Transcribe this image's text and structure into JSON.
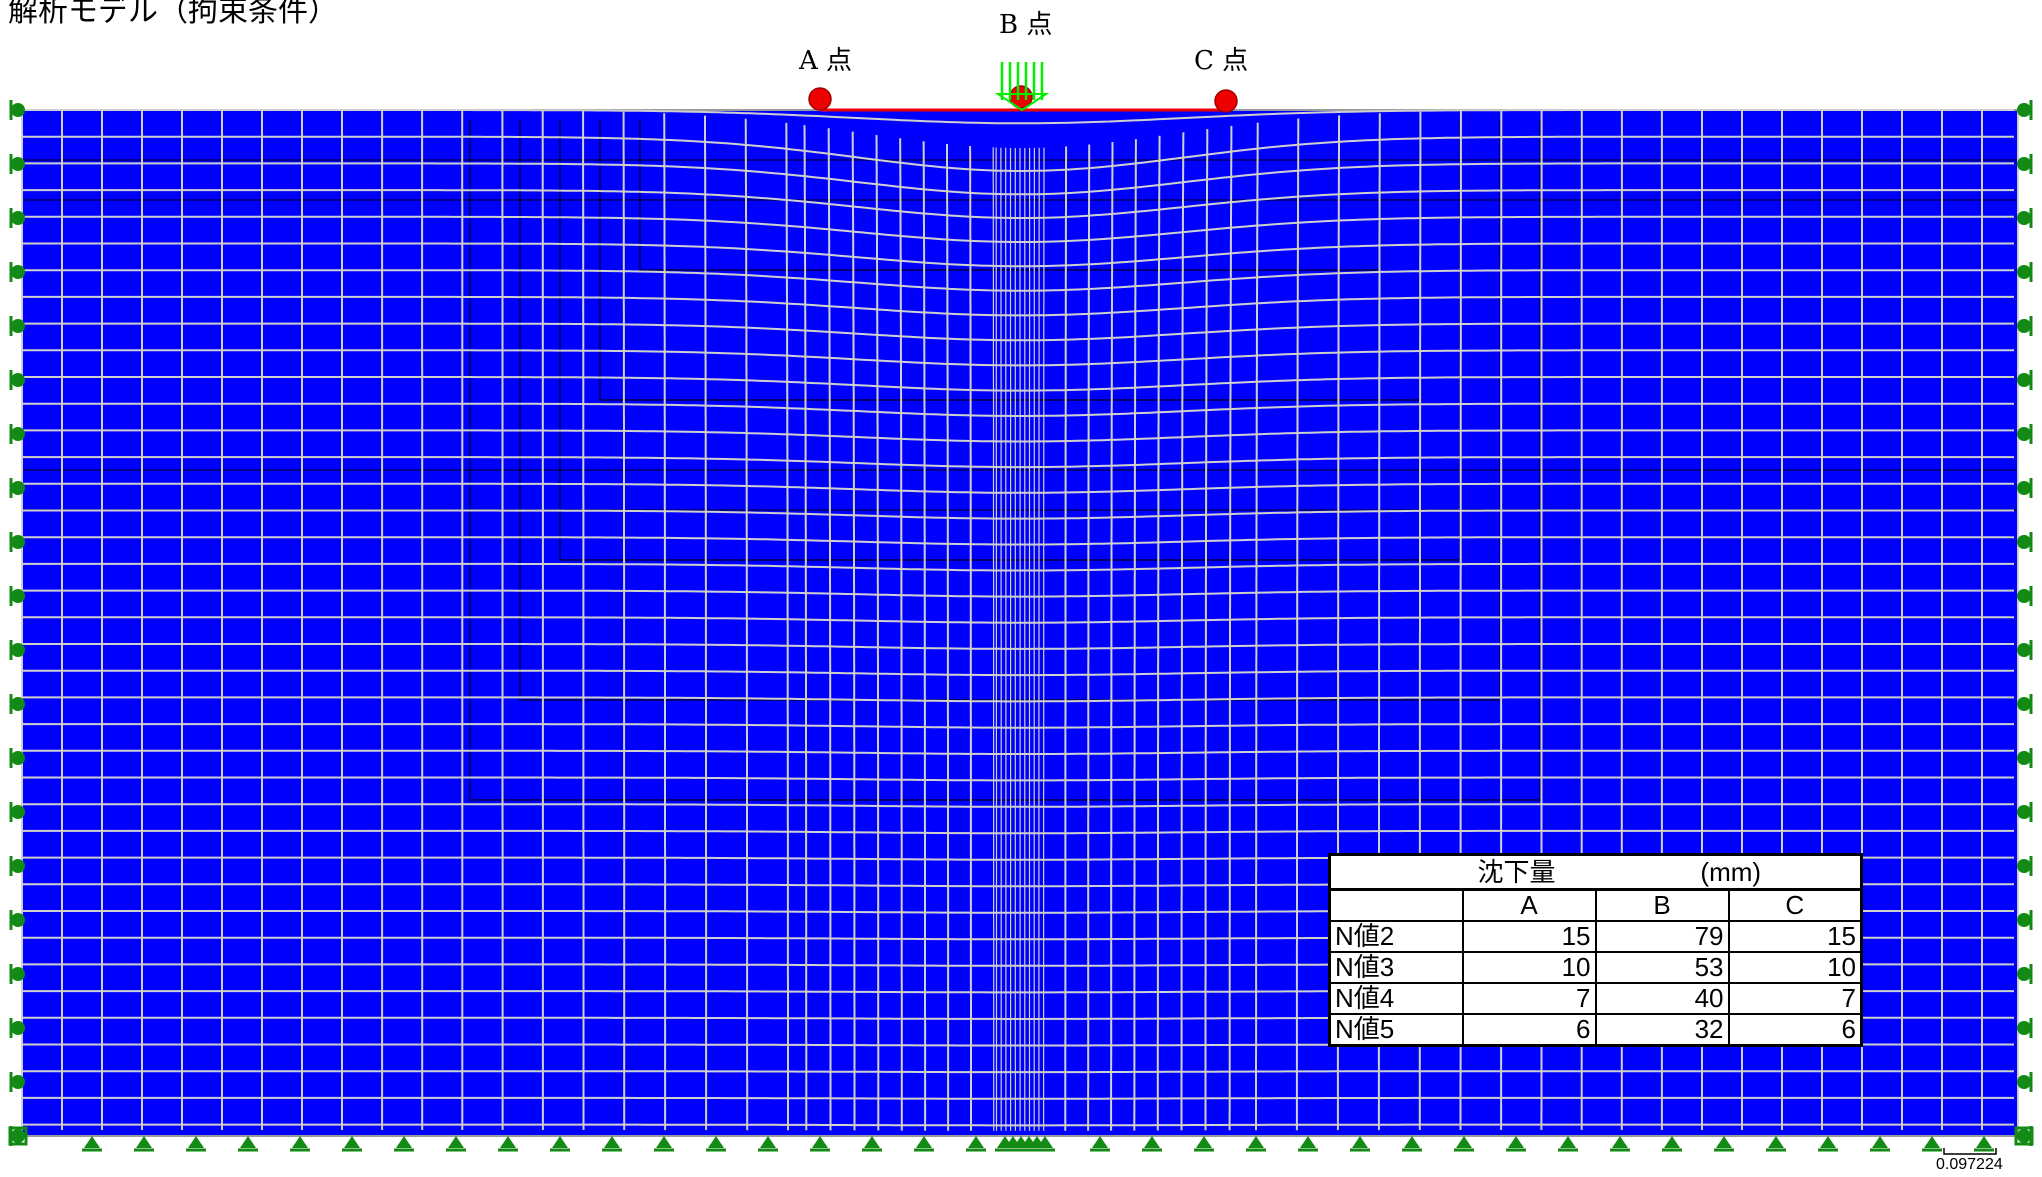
{
  "title": "解析モデル（拘束条件）",
  "points": {
    "a_label": "A 点",
    "b_label": "B 点",
    "c_label": "C 点"
  },
  "scale_label": "0.097224",
  "colors": {
    "soil": "#0000ff",
    "mesh_line": "#cfcfcf",
    "dark_line": "#000000",
    "point_marker": "#ee0000",
    "support_marker": "#138a13",
    "load_arrow": "#00ee00"
  },
  "table": {
    "title": "沈下量",
    "unit": "(mm)",
    "columns": [
      "",
      "A",
      "B",
      "C"
    ],
    "rows": [
      {
        "label": "N値2",
        "values": [
          "15",
          "79",
          "15"
        ]
      },
      {
        "label": "N値3",
        "values": [
          "10",
          "53",
          "10"
        ]
      },
      {
        "label": "N値4",
        "values": [
          "7",
          "40",
          "7"
        ]
      },
      {
        "label": "N値5",
        "values": [
          "6",
          "32",
          "6"
        ]
      }
    ]
  }
}
